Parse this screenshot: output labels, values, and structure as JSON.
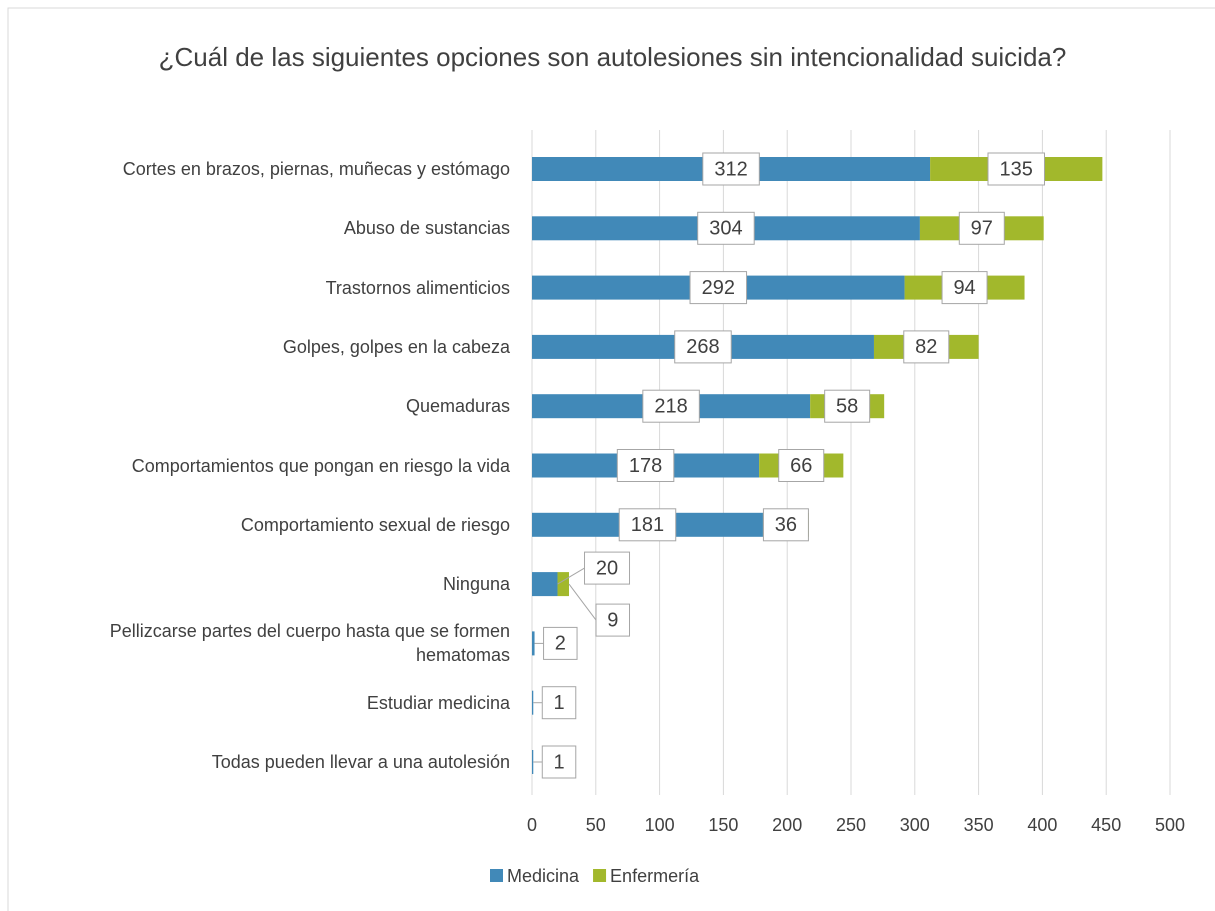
{
  "chart_data": {
    "type": "stacked_barh",
    "title": "¿Cuál de las siguientes opciones son autolesiones sin intencionalidad suicida?",
    "categories": [
      "Cortes en brazos, piernas, muñecas y estómago",
      "Abuso de sustancias",
      "Trastornos alimenticios",
      "Golpes, golpes en la cabeza",
      "Quemaduras",
      "Comportamientos que pongan en riesgo la vida",
      "Comportamiento sexual de riesgo",
      "Ninguna",
      "Pellizcarse partes del cuerpo hasta que se formen hematomas",
      "Estudiar medicina",
      "Todas pueden llevar a una autolesión"
    ],
    "series": [
      {
        "name": "Medicina",
        "color": "#4189b8",
        "values": [
          312,
          304,
          292,
          268,
          218,
          178,
          181,
          20,
          2,
          1,
          1
        ]
      },
      {
        "name": "Enfermería",
        "color": "#a2b82c",
        "values": [
          135,
          97,
          94,
          82,
          58,
          66,
          36,
          9,
          null,
          null,
          null
        ]
      }
    ],
    "xlim": [
      0,
      500
    ],
    "xticks": [
      0,
      50,
      100,
      150,
      200,
      250,
      300,
      350,
      400,
      450,
      500
    ],
    "grid": true,
    "legend": "bottom"
  }
}
